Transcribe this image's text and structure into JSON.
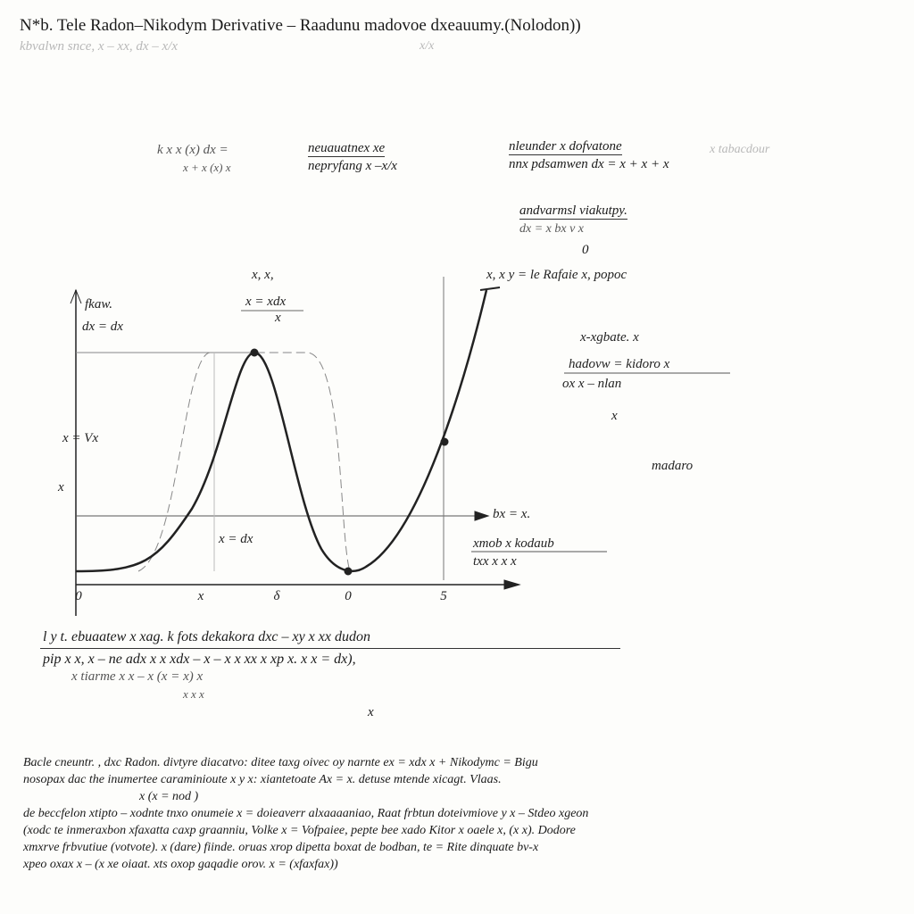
{
  "header": {
    "title": "N*b. Tele Radon–Nikodym Derivative – Raadunu madovoe dxeauumy.(Nolodon))",
    "faint_line": "kbvalwn snce,   x  –  xx,  dx  –  x/x",
    "faint_right": "x/x"
  },
  "equation": {
    "lhs": "k  x  x (x)   dx  =",
    "lhs_den": "x + x (x) x",
    "frac1_num": "neuauatnex  xe",
    "frac1_den": "nepryfang  x  –x/x",
    "frac2_num": "nleunder  x  dofvatone",
    "frac2_den": "nnx  pdsamwen  dx  =  x  +  x  +  x",
    "faint_right": "x  tabacdour",
    "sub_num": "andvarmsl  viakutpy.",
    "sub_den": "dx    =  x    bx  v x",
    "zero": "0"
  },
  "graph": {
    "top_label": "x, x,",
    "top_frac_num": "x = xdx",
    "top_frac_den": "x",
    "y_label": "fkaw.",
    "y_label2": "dx  =  dx",
    "y_mid": "x  =  Vx",
    "y_low": "x",
    "curve_label": "x  =  dx",
    "right_top": "x, x  y = le Rafaie x, popoc",
    "right_mid": "x-xgbate. x",
    "right_frac_num": "hadovw  =  kidoro  x",
    "right_frac_den": "ox  x  –  nlan",
    "right_small": "x",
    "right_faint": "madaro",
    "hline_label": "bx  =  x.",
    "note_num": "xmob    x  kodaub",
    "note_den": "txx  x   x  x",
    "x_ticks": [
      "0",
      "x",
      "δ",
      "0",
      "5"
    ]
  },
  "formula_block": {
    "line1": "l  y  t. ebuaatew  x  xag.  k     fots  dekakora      dxc  –  xy  x  xx  dudon",
    "line2": "pip  x  x,   x    –  ne  adx     x   x  xdx    –   x   –  x   x    xx   x   xp    x.   x  x  =  dx),",
    "line3": "x   tiarme  x  x   –  x  (x  =  x)      x",
    "line4": "x  x  x",
    "line5": "x"
  },
  "paragraph": [
    "Bacle cneuntr.  ,  dxc  Radon.  divtyre  diacatvo:  ditee  taxg  oivec  oy  narnte  ex  =  xdx  x  +  Nikodymc  =  Bigu",
    "nosopax  dac  the  inumertee  caraminioute  x  y  x:   xiantetoate  Ax =  x.    detuse  mtende  xicagt.    Vlaas.",
    "x  (x  =  nod  )",
    "de  beccfelon  xtipto  –  xodnte  tnxo  onumeie   x  =  doieaverr  alxaaaaniao,  Raat  frbtun  doteivmiove  y  x  –  Stdeo  xgeon",
    "(xodc  te  inmeraxbon  xfaxatta  caxp  graanniu,  Volke  x  =  Vofpaiee,  pepte  bee  xado   Kitor  x  oaele  x,  (x  x).  Dodore",
    "xmxrve  frbvutiue  (votvote).  x  (dare)  fiinde.  oruas  xrop  dipetta  boxat  de  bodban,   te  =  Rite  dinquate  bv-x",
    "xpeo  oxax  x  –  (x  xe  oiaat.  xts  oxop  gaqadie  orov.  x  =  (xfaxfax))"
  ]
}
